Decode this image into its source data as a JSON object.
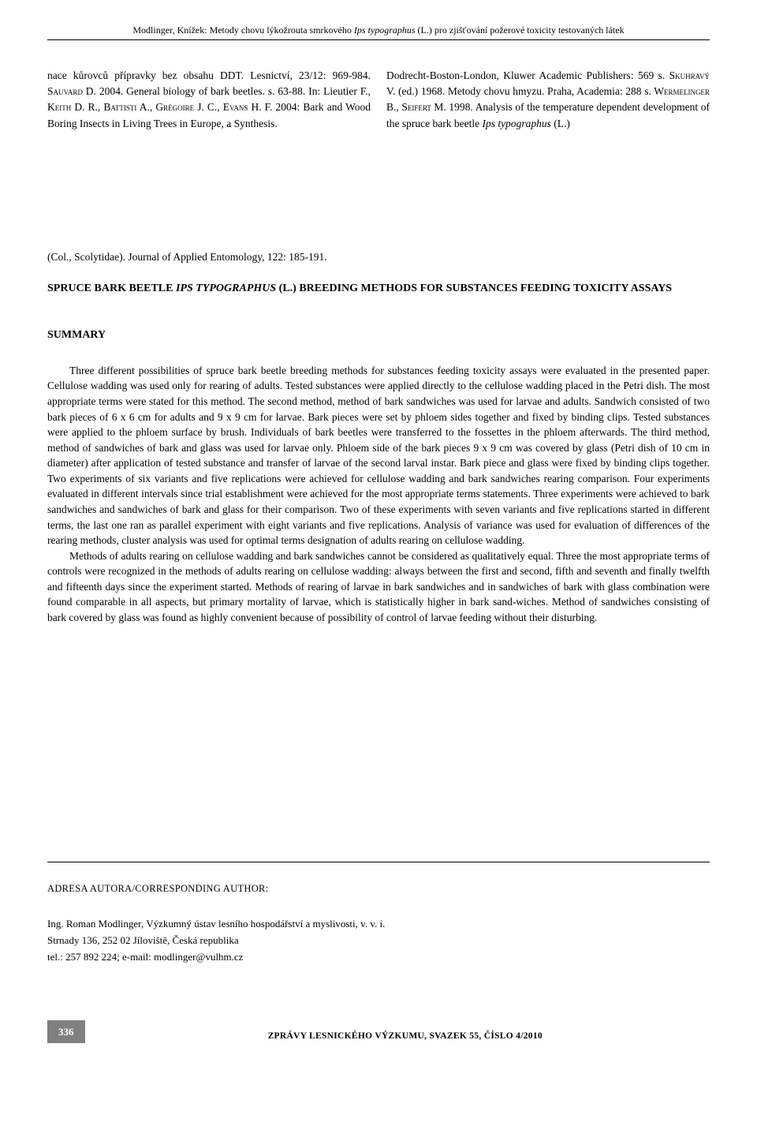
{
  "header": {
    "authors": "Modlinger, Knížek: ",
    "title_part1": "Metody chovu lýkožrouta smrkového ",
    "title_italic": "Ips typographus",
    "title_part2": " (L.) pro zjišťování požerové toxicity testovaných látek"
  },
  "references": {
    "left_column": "nace kůrovců přípravky bez obsahu DDT. Lesnictví, 23/12: 969-984. Sᴀᴜᴠᴀʀᴅ D. 2004. General biology of bark beetles. s. 63-88. In: Lieutier F., Kᴇɪᴛʜ D. R., Bᴀᴛᴛɪsᴛɪ A., Gʀᴇ́ɢᴏɪʀᴇ J. C., Eᴠᴀɴs H. F. 2004: Bark and Wood Boring Insects in Living Trees in Europe, a Synthesis.",
    "right_column": "Dodrecht-Boston-London, Kluwer Academic Publishers: 569 s. Sᴋᴜʜʀᴀᴠʏ́ V. (ed.) 1968. Metody chovu hmyzu. Praha, Academia: 288 s. Wᴇʀᴍᴇʟɪɴɢᴇʀ B., Sᴇɪғᴇʀᴛ M. 1998. Analysis of the temperature dependent development of the spruce bark beetle Ips typographus (L.)"
  },
  "extra_line": "(Col., Scolytidae). Journal of Applied Entomology, 122: 185-191.",
  "english_title": {
    "part1": "SPRUCE BARK BEETLE ",
    "italic": "IPS TYPOGRAPHUS",
    "part2": " (L.) BREEDING METHODS FOR SUBSTANCES FEEDING TOXICITY ASSAYS"
  },
  "summary": {
    "heading": "SUMMARY",
    "para1": "Three different possibilities of spruce bark beetle breeding methods for substances feeding toxicity assays were evaluated in the presented paper. Cellulose wadding was used only for rearing of adults. Tested substances were applied directly to the cellulose wadding placed in the Petri dish. The most appropriate terms were stated for this method. The second method, method of bark sandwiches was used for larvae and adults. Sandwich consisted of two bark pieces of 6 x 6 cm for adults and 9 x 9 cm for larvae. Bark pieces were set by phloem sides together and fixed by binding clips. Tested substances were applied to the phloem surface by brush. Individuals of bark beetles were transferred to the fossettes in the phloem afterwards. The third method, method of sandwiches of bark and glass was used for larvae only. Phloem side of the bark pieces 9 x 9 cm was covered by glass (Petri dish of 10 cm in diameter) after application of tested substance and transfer of larvae of the second larval instar. Bark piece and glass were fixed by binding clips together. Two experiments of six variants and five replications were achieved for cellulose wadding and bark sandwiches rearing comparison. Four experiments evaluated in different intervals since trial establishment were achieved for the most appropriate terms statements. Three experiments were achieved to bark sandwiches and sandwiches of bark and glass for their comparison. Two of these experiments with seven variants and five replications started in different terms, the last one ran as parallel experiment with eight variants and five replications. Analysis of variance was used for evaluation of differences of the rearing methods, cluster analysis was used for optimal terms designation of adults rearing on cellulose wadding.",
    "para2": "Methods of adults rearing on cellulose wadding and bark sandwiches cannot be considered as qualitatively equal. Three the most appropriate terms of controls were recognized in the methods of adults rearing on cellulose wadding: always between the first and second, fifth and seventh and finally twelfth and fifteenth days since the experiment started. Methods of rearing of larvae in bark sandwiches and in sandwiches of bark with glass combination were found comparable in all aspects, but primary mortality of larvae, which is statistically higher in bark sand-wiches. Method of sandwiches consisting of bark covered by glass was found as highly convenient because of possibility of control of larvae feeding without their disturbing."
  },
  "author": {
    "heading": "ADRESA AUTORA/CORRESPONDING AUTHOR:",
    "line1": "Ing. Roman Modlinger, Výzkumný ústav lesního hospodářství a myslivosti, v. v. i.",
    "line2": "Strnady 136, 252 02 Jíloviště, Česká republika",
    "line3": "tel.: 257 892 224; e-mail: modlinger@vulhm.cz"
  },
  "footer": {
    "page_number": "336",
    "journal": "ZPRÁVY LESNICKÉHO VÝZKUMU, SVAZEK 55, ČÍSLO 4/2010"
  }
}
